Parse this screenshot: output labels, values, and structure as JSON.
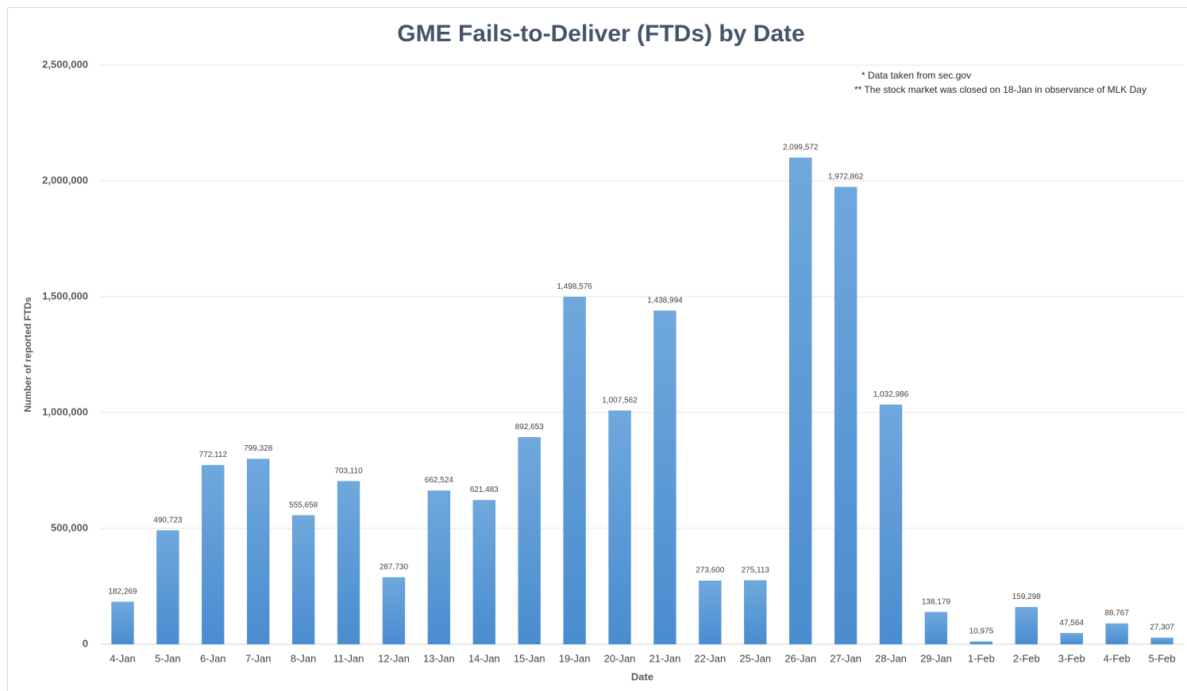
{
  "chart_data": {
    "type": "bar",
    "title": "GME Fails-to-Deliver (FTDs) by Date",
    "notes": [
      "* Data taken from sec.gov",
      "** The stock market was closed on 18-Jan in observance of MLK Day"
    ],
    "x_label": "Date",
    "y_label": "Number of reported FTDs",
    "categories": [
      "4-Jan",
      "5-Jan",
      "6-Jan",
      "7-Jan",
      "8-Jan",
      "11-Jan",
      "12-Jan",
      "13-Jan",
      "14-Jan",
      "15-Jan",
      "19-Jan",
      "20-Jan",
      "21-Jan",
      "22-Jan",
      "25-Jan",
      "26-Jan",
      "27-Jan",
      "28-Jan",
      "29-Jan",
      "1-Feb",
      "2-Feb",
      "3-Feb",
      "4-Feb",
      "5-Feb"
    ],
    "values": [
      182269,
      490723,
      772112,
      799328,
      555658,
      703110,
      287730,
      662524,
      621483,
      892653,
      1498576,
      1007562,
      1438994,
      273600,
      275113,
      2099572,
      1972862,
      1032986,
      138179,
      10975,
      159298,
      47564,
      88767,
      27307
    ],
    "value_labels": [
      "182,269",
      "490,723",
      "772,112",
      "799,328",
      "555,658",
      "703,110",
      "287,730",
      "662,524",
      "621,483",
      "892,653",
      "1,498,576",
      "1,007,562",
      "1,438,994",
      "273,600",
      "275,113",
      "2,099,572",
      "1,972,862",
      "1,032,986",
      "138,179",
      "10,975",
      "159,298",
      "47,564",
      "88,767",
      "27,307"
    ],
    "color": "#5b9bd5",
    "ylim": [
      0,
      2500000
    ],
    "yticks": [
      0,
      {
        "value": 500000,
        "label": "500,000"
      },
      {
        "value": 1000000,
        "label": "1,000,000"
      },
      {
        "value": 1500000,
        "label": "1,500,000"
      },
      {
        "value": 2000000,
        "label": "2,000,000"
      },
      {
        "value": 2500000,
        "label": "2,500,000"
      }
    ],
    "grid": true
  }
}
